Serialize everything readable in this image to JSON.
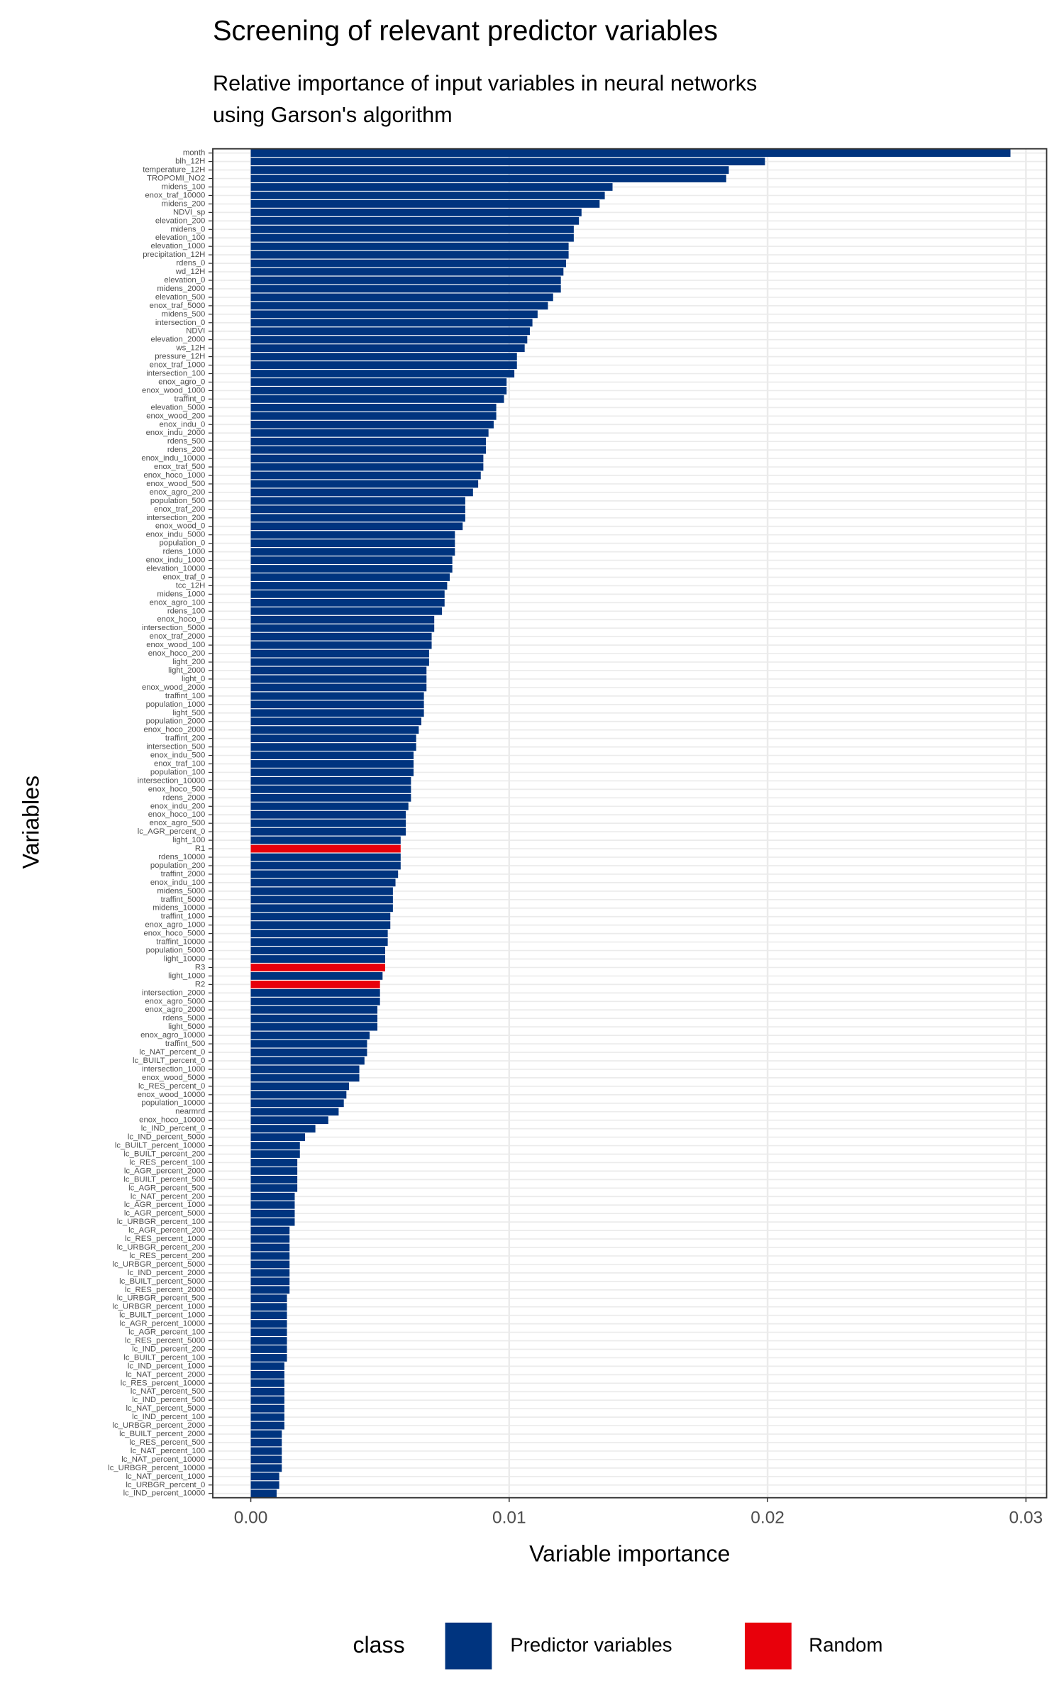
{
  "chart_data": {
    "type": "barh",
    "title": "Screening of relevant predictor variables",
    "subtitle": [
      "Relative importance of input variables in neural networks",
      "using Garson's algorithm"
    ],
    "xlabel": "Variable importance",
    "ylabel": "Variables",
    "legend_title": "class",
    "legend": "bottom",
    "grid": true,
    "xlim": [
      -0.00147,
      0.0308
    ],
    "xticks": [
      {
        "value": 0,
        "label": "0.00"
      },
      0.01,
      0.02,
      0.03
    ],
    "categories": [
      "month",
      "blh_12H",
      "temperature_12H",
      "TROPOMI_NO2",
      "midens_100",
      "enox_traf_10000",
      "midens_200",
      "NDVI_sp",
      "elevation_200",
      "midens_0",
      "elevation_100",
      "elevation_1000",
      "precipitation_12H",
      "rdens_0",
      "wd_12H",
      "elevation_0",
      "midens_2000",
      "elevation_500",
      "enox_traf_5000",
      "midens_500",
      "intersection_0",
      "NDVI",
      "elevation_2000",
      "ws_12H",
      "pressure_12H",
      "enox_traf_1000",
      "intersection_100",
      "enox_agro_0",
      "enox_wood_1000",
      "traffint_0",
      "elevation_5000",
      "enox_wood_200",
      "enox_indu_0",
      "enox_indu_2000",
      "rdens_500",
      "rdens_200",
      "enox_indu_10000",
      "enox_traf_500",
      "enox_hoco_1000",
      "enox_wood_500",
      "enox_agro_200",
      "population_500",
      "enox_traf_200",
      "intersection_200",
      "enox_wood_0",
      "enox_indu_5000",
      "population_0",
      "rdens_1000",
      "enox_indu_1000",
      "elevation_10000",
      "enox_traf_0",
      "tcc_12H",
      "midens_1000",
      "enox_agro_100",
      "rdens_100",
      "enox_hoco_0",
      "intersection_5000",
      "enox_traf_2000",
      "enox_wood_100",
      "enox_hoco_200",
      "light_200",
      "light_2000",
      "light_0",
      "enox_wood_2000",
      "traffint_100",
      "population_1000",
      "light_500",
      "population_2000",
      "enox_hoco_2000",
      "traffint_200",
      "intersection_500",
      "enox_indu_500",
      "enox_traf_100",
      "population_100",
      "intersection_10000",
      "enox_hoco_500",
      "rdens_2000",
      "enox_indu_200",
      "enox_hoco_100",
      "enox_agro_500",
      "lc_AGR_percent_0",
      "light_100",
      "R1",
      "rdens_10000",
      "population_200",
      "traffint_2000",
      "enox_indu_100",
      "midens_5000",
      "traffint_5000",
      "midens_10000",
      "traffint_1000",
      "enox_agro_1000",
      "enox_hoco_5000",
      "traffint_10000",
      "population_5000",
      "light_10000",
      "R3",
      "light_1000",
      "R2",
      "intersection_2000",
      "enox_agro_5000",
      "enox_agro_2000",
      "rdens_5000",
      "light_5000",
      "enox_agro_10000",
      "traffint_500",
      "lc_NAT_percent_0",
      "lc_BUILT_percent_0",
      "intersection_1000",
      "enox_wood_5000",
      "lc_RES_percent_0",
      "enox_wood_10000",
      "population_10000",
      "nearmrd",
      "enox_hoco_10000",
      "lc_IND_percent_0",
      "lc_IND_percent_5000",
      "lc_BUILT_percent_10000",
      "lc_BUILT_percent_200",
      "lc_RES_percent_100",
      "lc_AGR_percent_2000",
      "lc_BUILT_percent_500",
      "lc_AGR_percent_500",
      "lc_NAT_percent_200",
      "lc_AGR_percent_1000",
      "lc_AGR_percent_5000",
      "lc_URBGR_percent_100",
      "lc_AGR_percent_200",
      "lc_RES_percent_1000",
      "lc_URBGR_percent_200",
      "lc_RES_percent_200",
      "lc_URBGR_percent_5000",
      "lc_IND_percent_2000",
      "lc_BUILT_percent_5000",
      "lc_RES_percent_2000",
      "lc_URBGR_percent_500",
      "lc_URBGR_percent_1000",
      "lc_BUILT_percent_1000",
      "lc_AGR_percent_10000",
      "lc_AGR_percent_100",
      "lc_RES_percent_5000",
      "lc_IND_percent_200",
      "lc_BUILT_percent_100",
      "lc_IND_percent_1000",
      "lc_NAT_percent_2000",
      "lc_RES_percent_10000",
      "lc_NAT_percent_500",
      "lc_IND_percent_500",
      "lc_NAT_percent_5000",
      "lc_IND_percent_100",
      "lc_URBGR_percent_2000",
      "lc_BUILT_percent_2000",
      "lc_RES_percent_500",
      "lc_NAT_percent_100",
      "lc_NAT_percent_10000",
      "lc_URBGR_percent_10000",
      "lc_NAT_percent_1000",
      "lc_URBGR_percent_0",
      "lc_IND_percent_10000"
    ],
    "series": [
      {
        "name": "Predictor variables",
        "color": "#00347f",
        "values": [
          0.0294,
          0.0199,
          0.0185,
          0.0184,
          0.014,
          0.0137,
          0.0135,
          0.0128,
          0.0127,
          0.0125,
          0.0125,
          0.0123,
          0.0123,
          0.0122,
          0.0121,
          0.012,
          0.012,
          0.0117,
          0.0115,
          0.0111,
          0.0109,
          0.0108,
          0.0107,
          0.0106,
          0.0103,
          0.0103,
          0.0102,
          0.0099,
          0.0099,
          0.0098,
          0.0095,
          0.0095,
          0.0094,
          0.0092,
          0.0091,
          0.0091,
          0.009,
          0.009,
          0.0089,
          0.0088,
          0.0086,
          0.0083,
          0.0083,
          0.0083,
          0.0082,
          0.0079,
          0.0079,
          0.0079,
          0.0078,
          0.0078,
          0.0077,
          0.0076,
          0.0075,
          0.0075,
          0.0074,
          0.0071,
          0.0071,
          0.007,
          0.007,
          0.0069,
          0.0069,
          0.0068,
          0.0068,
          0.0068,
          0.0067,
          0.0067,
          0.0067,
          0.0066,
          0.0065,
          0.0064,
          0.0064,
          0.0063,
          0.0063,
          0.0063,
          0.0062,
          0.0062,
          0.0062,
          0.0061,
          0.006,
          0.006,
          0.006,
          0.0058,
          null,
          0.0058,
          0.0058,
          0.0057,
          0.0056,
          0.0055,
          0.0055,
          0.0055,
          0.0054,
          0.0054,
          0.0053,
          0.0053,
          0.0052,
          0.0052,
          null,
          0.0051,
          null,
          0.005,
          0.005,
          0.0049,
          0.0049,
          0.0049,
          0.0046,
          0.0045,
          0.0045,
          0.0044,
          0.0042,
          0.0042,
          0.0038,
          0.0037,
          0.0036,
          0.0034,
          0.003,
          0.0025,
          0.0021,
          0.0019,
          0.0019,
          0.0018,
          0.0018,
          0.0018,
          0.0018,
          0.0017,
          0.0017,
          0.0017,
          0.0017,
          0.0015,
          0.0015,
          0.0015,
          0.0015,
          0.0015,
          0.0015,
          0.0015,
          0.0015,
          0.0014,
          0.0014,
          0.0014,
          0.0014,
          0.0014,
          0.0014,
          0.0014,
          0.0014,
          0.0013,
          0.0013,
          0.0013,
          0.0013,
          0.0013,
          0.0013,
          0.0013,
          0.0013,
          0.0012,
          0.0012,
          0.0012,
          0.0012,
          0.0012,
          0.0011,
          0.0011,
          0.001
        ]
      },
      {
        "name": "Random",
        "color": "#e8000b",
        "values": [
          null,
          null,
          null,
          null,
          null,
          null,
          null,
          null,
          null,
          null,
          null,
          null,
          null,
          null,
          null,
          null,
          null,
          null,
          null,
          null,
          null,
          null,
          null,
          null,
          null,
          null,
          null,
          null,
          null,
          null,
          null,
          null,
          null,
          null,
          null,
          null,
          null,
          null,
          null,
          null,
          null,
          null,
          null,
          null,
          null,
          null,
          null,
          null,
          null,
          null,
          null,
          null,
          null,
          null,
          null,
          null,
          null,
          null,
          null,
          null,
          null,
          null,
          null,
          null,
          null,
          null,
          null,
          null,
          null,
          null,
          null,
          null,
          null,
          null,
          null,
          null,
          null,
          null,
          null,
          null,
          null,
          null,
          0.0058,
          null,
          null,
          null,
          null,
          null,
          null,
          null,
          null,
          null,
          null,
          null,
          null,
          null,
          0.0052,
          null,
          0.005,
          null,
          null,
          null,
          null,
          null,
          null,
          null,
          null,
          null,
          null,
          null,
          null,
          null,
          null,
          null,
          null,
          null,
          null,
          null,
          null,
          null,
          null,
          null,
          null,
          null,
          null,
          null,
          null,
          null,
          null,
          null,
          null,
          null,
          null,
          null,
          null,
          null,
          null,
          null,
          null,
          null,
          null,
          null,
          null,
          null,
          null,
          null,
          null,
          null,
          null,
          null,
          null,
          null,
          null,
          null,
          null,
          null,
          null,
          null,
          null
        ]
      }
    ]
  }
}
